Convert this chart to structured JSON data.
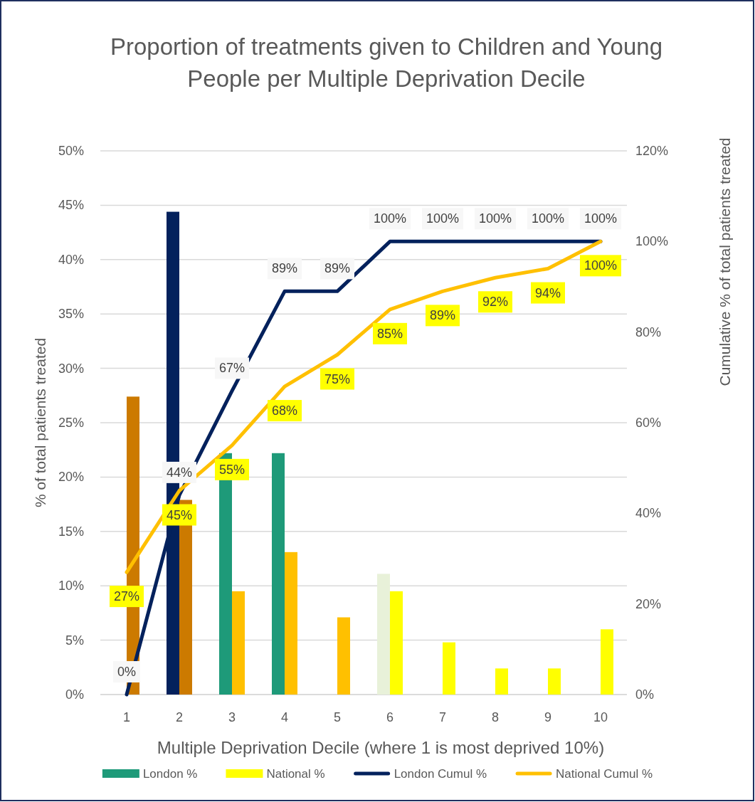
{
  "chart_data": {
    "type": "bar",
    "title": "Proportion of treatments given to Children and Young People per Multiple Deprivation Decile",
    "xlabel": "Multiple Deprivation Decile (where 1 is most deprived 10%)",
    "ylabel": "% of total patients treated",
    "y2label": "Cumulative % of total patients treated",
    "categories": [
      "1",
      "2",
      "3",
      "4",
      "5",
      "6",
      "7",
      "8",
      "9",
      "10"
    ],
    "series": [
      {
        "name": "London %",
        "color": "#1e9a79",
        "colors": [
          null,
          "#03215c",
          "#1e9a79",
          "#1e9a79",
          null,
          "#e8f1d9",
          null,
          null,
          null,
          null
        ],
        "values": [
          0,
          44.4,
          22.2,
          22.2,
          0,
          11.1,
          0,
          0,
          0,
          0
        ]
      },
      {
        "name": "National %",
        "color": "#ffff00",
        "colors": [
          "#cc7a00",
          "#cc7a00",
          "#ffc000",
          "#ffc000",
          "#ffc000",
          "#ffff00",
          "#ffff00",
          "#ffff00",
          "#ffff00",
          "#ffff00"
        ],
        "values": [
          27.4,
          17.9,
          9.5,
          13.1,
          7.1,
          9.5,
          4.8,
          2.4,
          2.4,
          6.0
        ]
      },
      {
        "name": "London Cumul %",
        "type": "line",
        "axis": "y2",
        "color": "#03215c",
        "values": [
          0,
          44,
          67,
          89,
          89,
          100,
          100,
          100,
          100,
          100
        ],
        "value_labels": [
          "0%",
          "44%",
          "67%",
          "89%",
          "89%",
          "100%",
          "100%",
          "100%",
          "100%",
          "100%"
        ]
      },
      {
        "name": "National Cumul %",
        "type": "line",
        "axis": "y2",
        "color": "#ffc000",
        "values": [
          27,
          45,
          55,
          68,
          75,
          85,
          89,
          92,
          94,
          100
        ],
        "value_labels": [
          "27%",
          "45%",
          "55%",
          "68%",
          "75%",
          "85%",
          "89%",
          "92%",
          "94%",
          "100%"
        ]
      }
    ],
    "ylim": [
      0,
      50
    ],
    "yticks": [
      {
        "value": 0,
        "label": "0%"
      },
      {
        "value": 5,
        "label": "5%"
      },
      {
        "value": 10,
        "label": "10%"
      },
      {
        "value": 15,
        "label": "15%"
      },
      {
        "value": 20,
        "label": "20%"
      },
      {
        "value": 25,
        "label": "25%"
      },
      {
        "value": 30,
        "label": "30%"
      },
      {
        "value": 35,
        "label": "35%"
      },
      {
        "value": 40,
        "label": "40%"
      },
      {
        "value": 45,
        "label": "45%"
      },
      {
        "value": 50,
        "label": "50%"
      }
    ],
    "y2lim": [
      0,
      120
    ],
    "y2ticks": [
      {
        "value": 0,
        "label": "0%"
      },
      {
        "value": 20,
        "label": "20%"
      },
      {
        "value": 40,
        "label": "40%"
      },
      {
        "value": 60,
        "label": "60%"
      },
      {
        "value": 80,
        "label": "80%"
      },
      {
        "value": 100,
        "label": "100%"
      },
      {
        "value": 120,
        "label": "120%"
      }
    ],
    "grid": "y",
    "legend": "bottom"
  }
}
